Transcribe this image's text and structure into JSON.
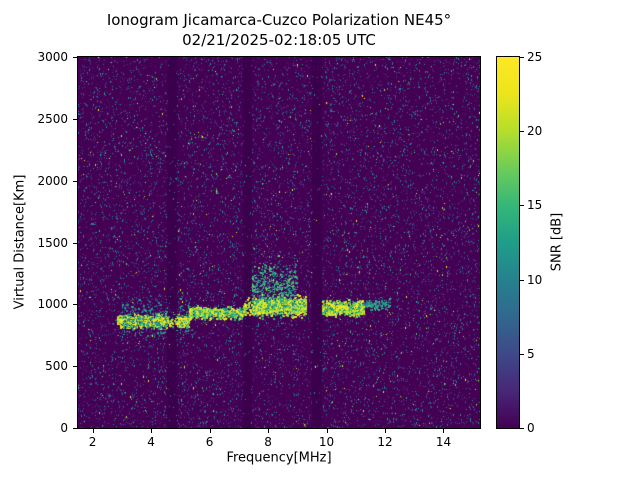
{
  "chart_data": {
    "type": "heatmap",
    "title": "Ionogram Jicamarca-Cuzco Polarization NE45°",
    "subtitle": "02/21/2025-02:18:05 UTC",
    "xlabel": "Frequency[MHz]",
    "ylabel": "Virtual Distance[Km]",
    "colorbar_label": "SNR [dB]",
    "xlim": [
      1.5,
      15.25
    ],
    "ylim": [
      0,
      3000
    ],
    "clim": [
      0,
      25
    ],
    "x_ticks": [
      2,
      4,
      6,
      8,
      10,
      12,
      14
    ],
    "y_ticks": [
      0,
      500,
      1000,
      1500,
      2000,
      2500,
      3000
    ],
    "colorbar_ticks": [
      0,
      5,
      10,
      15,
      20,
      25
    ],
    "colormap": "viridis",
    "background_snr_db": 0,
    "viridis_anchors": [
      [
        0.0,
        68,
        1,
        84
      ],
      [
        0.1,
        72,
        40,
        120
      ],
      [
        0.2,
        62,
        74,
        137
      ],
      [
        0.3,
        49,
        104,
        142
      ],
      [
        0.4,
        38,
        130,
        142
      ],
      [
        0.5,
        31,
        158,
        137
      ],
      [
        0.6,
        53,
        183,
        121
      ],
      [
        0.7,
        109,
        205,
        89
      ],
      [
        0.8,
        180,
        222,
        44
      ],
      [
        0.9,
        236,
        229,
        27
      ],
      [
        1.0,
        253,
        231,
        37
      ]
    ],
    "noise": {
      "seed": 42,
      "count": 13500,
      "quiet_band_rejection": 0.84
    },
    "quiet_bands": [
      [
        4.55,
        4.9
      ],
      [
        7.15,
        7.45
      ],
      [
        9.5,
        9.85
      ]
    ],
    "echo_trace": [
      {
        "f0": 2.85,
        "f1": 5.3,
        "alt": 865,
        "spread": 50,
        "snr0": 12,
        "snr1": 25,
        "n": 1200
      },
      {
        "f0": 3.0,
        "f1": 5.3,
        "alt": 880,
        "spread": 160,
        "snr0": 4,
        "snr1": 14,
        "n": 500
      },
      {
        "f0": 5.3,
        "f1": 7.15,
        "alt": 930,
        "spread": 45,
        "snr0": 9,
        "snr1": 24,
        "n": 650
      },
      {
        "f0": 7.15,
        "f1": 9.3,
        "alt": 985,
        "spread": 70,
        "snr0": 12,
        "snr1": 25,
        "n": 1500
      },
      {
        "f0": 7.4,
        "f1": 9.0,
        "alt": 1130,
        "spread": 200,
        "snr0": 5,
        "snr1": 18,
        "n": 650
      },
      {
        "f0": 9.85,
        "f1": 11.3,
        "alt": 970,
        "spread": 60,
        "snr0": 9,
        "snr1": 25,
        "n": 750
      },
      {
        "f0": 11.3,
        "f1": 12.2,
        "alt": 1000,
        "spread": 40,
        "snr0": 5,
        "snr1": 16,
        "n": 220
      }
    ]
  }
}
